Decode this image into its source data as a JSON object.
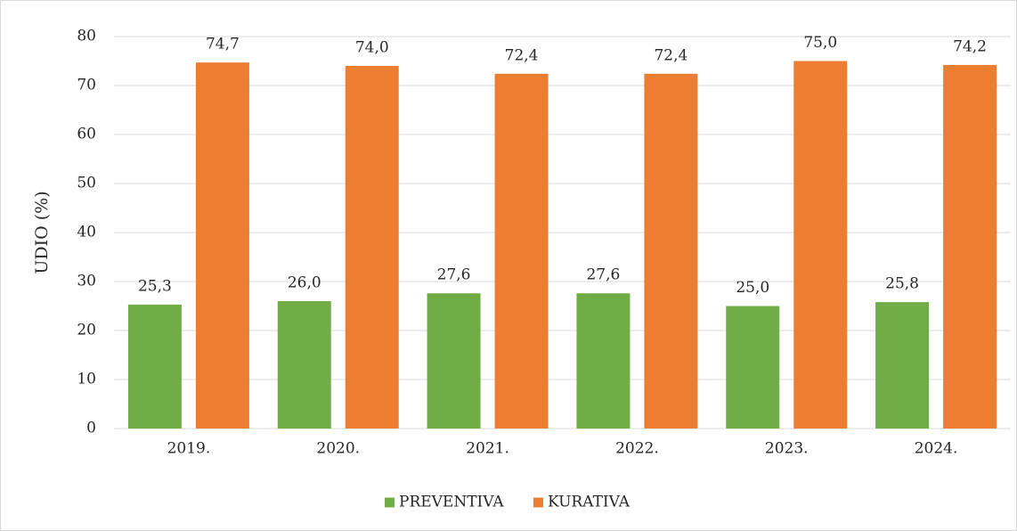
{
  "chart_data": {
    "type": "bar",
    "y_label": "UDIO (%)",
    "categories": [
      "2019.",
      "2020.",
      "2021.",
      "2022.",
      "2023.",
      "2024."
    ],
    "series": [
      {
        "name": "PREVENTIVA",
        "color": "#70ad47",
        "values": [
          25.3,
          26.0,
          27.6,
          27.6,
          25.0,
          25.8
        ],
        "value_labels": [
          "25,3",
          "26,0",
          "27,6",
          "27,6",
          "25,0",
          "25,8"
        ]
      },
      {
        "name": "KURATIVA",
        "color": "#ed7d31",
        "values": [
          74.7,
          74.0,
          72.4,
          72.4,
          75.0,
          74.2
        ],
        "value_labels": [
          "74,7",
          "74,0",
          "72,4",
          "72,4",
          "75,0",
          "74,2"
        ]
      }
    ],
    "ylim": [
      0,
      80
    ],
    "yticks": [
      0,
      10,
      20,
      30,
      40,
      50,
      60,
      70,
      80
    ],
    "grid": true,
    "legend": "bottom"
  }
}
